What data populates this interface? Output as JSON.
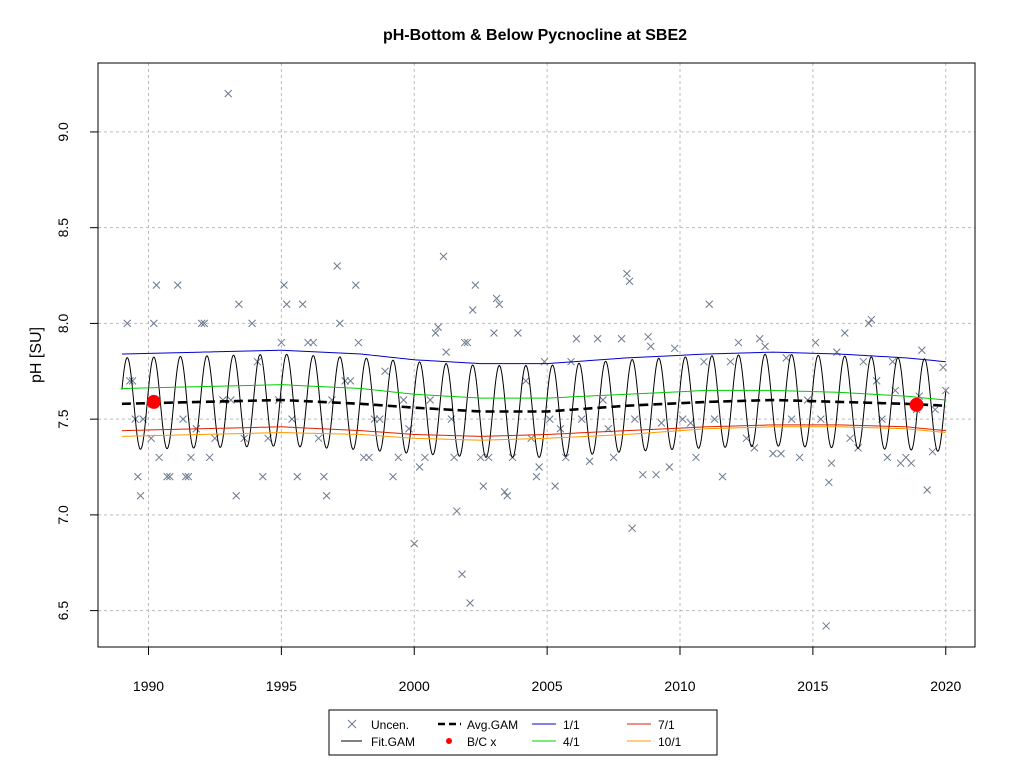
{
  "chart_data": {
    "type": "scatter",
    "title": "pH-Bottom & Below Pycnocline at SBE2",
    "xlabel": "",
    "ylabel": "pH [SU]",
    "xlim": [
      1988.1,
      2021.1
    ],
    "ylim": [
      6.31,
      9.36
    ],
    "x_ticks": [
      1990,
      1995,
      2000,
      2005,
      2010,
      2015,
      2020
    ],
    "y_ticks": [
      6.5,
      7.0,
      7.5,
      8.0,
      8.5,
      9.0
    ],
    "x_tick_labels": [
      "1990",
      "1995",
      "2000",
      "2005",
      "2010",
      "2015",
      "2020"
    ],
    "y_tick_labels": [
      "6.5",
      "7.0",
      "7.5",
      "8.0",
      "8.5",
      "9.0"
    ],
    "grid": true,
    "legend": {
      "placement": "bottom-center",
      "entries": [
        "Uncen.",
        "Fit.GAM",
        "Avg.GAM",
        "B/C x",
        "1/1",
        "4/1",
        "7/1",
        "10/1"
      ]
    },
    "colors": {
      "points": "#6b7a8f",
      "fit": "#000000",
      "avg": "#000000",
      "bc": "#ff0000",
      "q1": "#0000cc",
      "q4": "#00cc00",
      "q7": "#dd2200",
      "q10": "#ff9900",
      "grid": "#bbbbbb"
    },
    "uncen_points": [
      [
        1989.2,
        8.0
      ],
      [
        1989.3,
        7.7
      ],
      [
        1989.4,
        7.7
      ],
      [
        1989.5,
        7.5
      ],
      [
        1989.6,
        7.2
      ],
      [
        1989.7,
        7.1
      ],
      [
        1989.8,
        7.5
      ],
      [
        1990.1,
        7.4
      ],
      [
        1990.2,
        8.0
      ],
      [
        1990.3,
        8.2
      ],
      [
        1990.4,
        7.3
      ],
      [
        1990.7,
        7.2
      ],
      [
        1990.8,
        7.2
      ],
      [
        1991.1,
        8.2
      ],
      [
        1991.3,
        7.5
      ],
      [
        1991.4,
        7.2
      ],
      [
        1991.5,
        7.2
      ],
      [
        1991.6,
        7.3
      ],
      [
        1991.8,
        7.45
      ],
      [
        1992.0,
        8.0
      ],
      [
        1992.1,
        8.0
      ],
      [
        1992.3,
        7.3
      ],
      [
        1992.5,
        7.4
      ],
      [
        1992.8,
        7.6
      ],
      [
        1993.0,
        9.2
      ],
      [
        1993.1,
        7.6
      ],
      [
        1993.3,
        7.1
      ],
      [
        1993.4,
        8.1
      ],
      [
        1993.6,
        7.4
      ],
      [
        1993.9,
        8.0
      ],
      [
        1994.1,
        7.8
      ],
      [
        1994.3,
        7.2
      ],
      [
        1994.5,
        7.4
      ],
      [
        1994.9,
        7.6
      ],
      [
        1995.0,
        7.9
      ],
      [
        1995.1,
        8.2
      ],
      [
        1995.2,
        8.1
      ],
      [
        1995.4,
        7.5
      ],
      [
        1995.6,
        7.2
      ],
      [
        1995.8,
        8.1
      ],
      [
        1996.0,
        7.9
      ],
      [
        1996.2,
        7.9
      ],
      [
        1996.4,
        7.4
      ],
      [
        1996.6,
        7.2
      ],
      [
        1996.7,
        7.1
      ],
      [
        1996.9,
        7.6
      ],
      [
        1997.1,
        8.3
      ],
      [
        1997.2,
        8.0
      ],
      [
        1997.4,
        7.7
      ],
      [
        1997.6,
        7.7
      ],
      [
        1997.8,
        8.2
      ],
      [
        1997.9,
        7.9
      ],
      [
        1998.1,
        7.3
      ],
      [
        1998.3,
        7.3
      ],
      [
        1998.5,
        7.5
      ],
      [
        1998.7,
        7.5
      ],
      [
        1998.9,
        7.75
      ],
      [
        1999.2,
        7.2
      ],
      [
        1999.4,
        7.3
      ],
      [
        1999.6,
        7.6
      ],
      [
        1999.8,
        7.45
      ],
      [
        2000.0,
        6.85
      ],
      [
        2000.2,
        7.25
      ],
      [
        2000.4,
        7.3
      ],
      [
        2000.6,
        7.6
      ],
      [
        2000.8,
        7.95
      ],
      [
        2000.9,
        7.98
      ],
      [
        2001.1,
        8.35
      ],
      [
        2001.2,
        7.85
      ],
      [
        2001.4,
        7.5
      ],
      [
        2001.5,
        7.3
      ],
      [
        2001.6,
        7.02
      ],
      [
        2001.8,
        6.69
      ],
      [
        2001.9,
        7.9
      ],
      [
        2002.0,
        7.9
      ],
      [
        2002.1,
        6.54
      ],
      [
        2002.2,
        8.07
      ],
      [
        2002.3,
        8.2
      ],
      [
        2002.5,
        7.3
      ],
      [
        2002.6,
        7.15
      ],
      [
        2002.8,
        7.3
      ],
      [
        2003.0,
        7.95
      ],
      [
        2003.1,
        8.13
      ],
      [
        2003.2,
        8.1
      ],
      [
        2003.4,
        7.12
      ],
      [
        2003.5,
        7.1
      ],
      [
        2003.7,
        7.3
      ],
      [
        2003.9,
        7.95
      ],
      [
        2004.2,
        7.7
      ],
      [
        2004.4,
        7.4
      ],
      [
        2004.6,
        7.2
      ],
      [
        2004.7,
        7.25
      ],
      [
        2004.9,
        7.8
      ],
      [
        2005.1,
        7.5
      ],
      [
        2005.3,
        7.15
      ],
      [
        2005.5,
        7.45
      ],
      [
        2005.7,
        7.3
      ],
      [
        2005.9,
        7.8
      ],
      [
        2006.1,
        7.92
      ],
      [
        2006.3,
        7.5
      ],
      [
        2006.6,
        7.28
      ],
      [
        2006.9,
        7.92
      ],
      [
        2007.1,
        7.6
      ],
      [
        2007.3,
        7.45
      ],
      [
        2007.5,
        7.3
      ],
      [
        2007.8,
        7.92
      ],
      [
        2008.0,
        8.26
      ],
      [
        2008.1,
        8.22
      ],
      [
        2008.2,
        6.93
      ],
      [
        2008.3,
        7.5
      ],
      [
        2008.6,
        7.21
      ],
      [
        2008.8,
        7.93
      ],
      [
        2008.9,
        7.88
      ],
      [
        2009.1,
        7.21
      ],
      [
        2009.3,
        7.48
      ],
      [
        2009.6,
        7.25
      ],
      [
        2009.8,
        7.87
      ],
      [
        2010.1,
        7.5
      ],
      [
        2010.4,
        7.48
      ],
      [
        2010.6,
        7.3
      ],
      [
        2010.9,
        7.8
      ],
      [
        2011.1,
        8.1
      ],
      [
        2011.3,
        7.5
      ],
      [
        2011.6,
        7.2
      ],
      [
        2011.9,
        7.8
      ],
      [
        2012.2,
        7.9
      ],
      [
        2012.5,
        7.4
      ],
      [
        2012.8,
        7.35
      ],
      [
        2013.0,
        7.92
      ],
      [
        2013.2,
        7.88
      ],
      [
        2013.5,
        7.32
      ],
      [
        2013.8,
        7.32
      ],
      [
        2014.0,
        7.82
      ],
      [
        2014.2,
        7.5
      ],
      [
        2014.5,
        7.3
      ],
      [
        2014.8,
        7.6
      ],
      [
        2015.1,
        7.9
      ],
      [
        2015.3,
        7.5
      ],
      [
        2015.5,
        6.42
      ],
      [
        2015.6,
        7.17
      ],
      [
        2015.7,
        7.27
      ],
      [
        2015.9,
        7.85
      ],
      [
        2016.2,
        7.95
      ],
      [
        2016.4,
        7.4
      ],
      [
        2016.7,
        7.35
      ],
      [
        2016.9,
        7.8
      ],
      [
        2017.1,
        8.0
      ],
      [
        2017.2,
        8.02
      ],
      [
        2017.4,
        7.7
      ],
      [
        2017.6,
        7.5
      ],
      [
        2017.8,
        7.3
      ],
      [
        2018.0,
        7.8
      ],
      [
        2018.1,
        7.65
      ],
      [
        2018.3,
        7.27
      ],
      [
        2018.5,
        7.3
      ],
      [
        2018.7,
        7.27
      ],
      [
        2018.9,
        7.55
      ],
      [
        2019.0,
        7.62
      ],
      [
        2019.1,
        7.86
      ],
      [
        2019.3,
        7.13
      ],
      [
        2019.5,
        7.33
      ],
      [
        2019.6,
        7.55
      ],
      [
        2019.9,
        7.77
      ],
      [
        2020.0,
        7.65
      ]
    ],
    "fit_gam": {
      "x_start": 1989.0,
      "x_end": 2020.0,
      "period_years": 1.0,
      "amplitude": 0.24,
      "peak_phase": 0.2,
      "baseline_x": [
        1989.0,
        1992.0,
        1995.0,
        1998.0,
        2000.0,
        2002.5,
        2005.0,
        2008.0,
        2011.0,
        2013.5,
        2016.0,
        2018.5,
        2020.0
      ],
      "baseline_y": [
        7.58,
        7.59,
        7.6,
        7.58,
        7.56,
        7.54,
        7.54,
        7.57,
        7.59,
        7.6,
        7.59,
        7.58,
        7.57
      ]
    },
    "avg_gam": {
      "x": [
        1989.0,
        1992.0,
        1995.0,
        1998.0,
        2000.0,
        2002.5,
        2005.0,
        2008.0,
        2011.0,
        2013.5,
        2016.0,
        2018.5,
        2020.0
      ],
      "y": [
        7.58,
        7.59,
        7.6,
        7.58,
        7.56,
        7.54,
        7.54,
        7.57,
        7.59,
        7.6,
        7.59,
        7.58,
        7.57
      ]
    },
    "bc_points": [
      [
        1990.2,
        7.59
      ],
      [
        2018.9,
        7.575
      ]
    ],
    "series": [
      {
        "name": "1/1",
        "x": [
          1989.0,
          1992.0,
          1995.0,
          1998.0,
          2000.0,
          2002.5,
          2005.0,
          2008.0,
          2011.0,
          2013.5,
          2016.0,
          2018.5,
          2020.0
        ],
        "y": [
          7.84,
          7.85,
          7.86,
          7.84,
          7.81,
          7.79,
          7.79,
          7.82,
          7.84,
          7.85,
          7.84,
          7.82,
          7.8
        ]
      },
      {
        "name": "4/1",
        "x": [
          1989.0,
          1992.0,
          1995.0,
          1998.0,
          2000.0,
          2002.5,
          2005.0,
          2008.0,
          2011.0,
          2013.5,
          2016.0,
          2018.5,
          2020.0
        ],
        "y": [
          7.66,
          7.67,
          7.68,
          7.66,
          7.63,
          7.61,
          7.61,
          7.63,
          7.65,
          7.65,
          7.64,
          7.62,
          7.6
        ]
      },
      {
        "name": "7/1",
        "x": [
          1989.0,
          1992.0,
          1995.0,
          1998.0,
          2000.0,
          2002.5,
          2005.0,
          2008.0,
          2011.0,
          2013.5,
          2016.0,
          2018.5,
          2020.0
        ],
        "y": [
          7.44,
          7.45,
          7.46,
          7.44,
          7.42,
          7.41,
          7.42,
          7.44,
          7.46,
          7.47,
          7.47,
          7.46,
          7.44
        ]
      },
      {
        "name": "10/1",
        "x": [
          1989.0,
          1992.0,
          1995.0,
          1998.0,
          2000.0,
          2002.5,
          2005.0,
          2008.0,
          2011.0,
          2013.5,
          2016.0,
          2018.5,
          2020.0
        ],
        "y": [
          7.41,
          7.42,
          7.43,
          7.42,
          7.4,
          7.39,
          7.4,
          7.42,
          7.45,
          7.46,
          7.46,
          7.45,
          7.43
        ]
      }
    ]
  }
}
